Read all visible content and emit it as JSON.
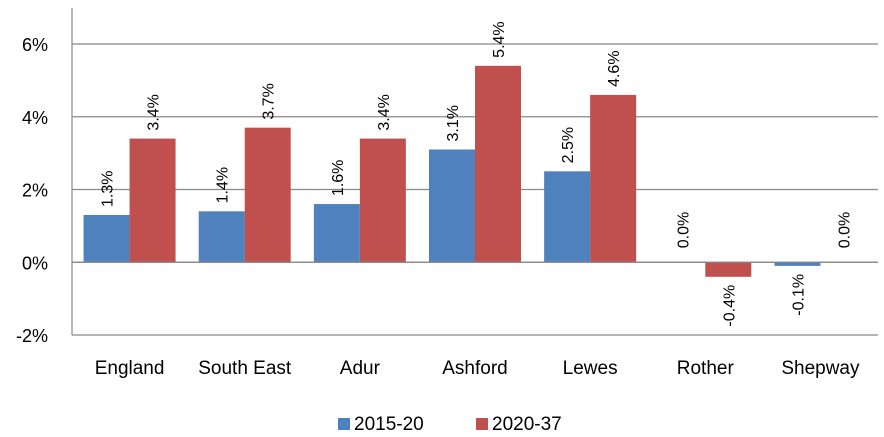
{
  "chart_data": {
    "type": "bar",
    "categories": [
      "England",
      "South East",
      "Adur",
      "Ashford",
      "Lewes",
      "Rother",
      "Shepway"
    ],
    "series": [
      {
        "name": "2015-20",
        "values": [
          1.3,
          1.4,
          1.6,
          3.1,
          2.5,
          0.0,
          -0.1
        ],
        "labels": [
          "1.3%",
          "1.4%",
          "1.6%",
          "3.1%",
          "2.5%",
          "0.0%",
          "-0.1%"
        ],
        "color": "#4f81bd"
      },
      {
        "name": "2020-37",
        "values": [
          3.4,
          3.7,
          3.4,
          5.4,
          4.6,
          -0.4,
          0.0
        ],
        "labels": [
          "3.4%",
          "3.7%",
          "3.4%",
          "5.4%",
          "4.6%",
          "-0.4%",
          "0.0%"
        ],
        "color": "#c0504d"
      }
    ],
    "ylim": [
      -2,
      6
    ],
    "yticks": [
      -2,
      0,
      2,
      4,
      6
    ],
    "ytick_labels": [
      "-2%",
      "0%",
      "2%",
      "4%",
      "6%"
    ],
    "gridlines": true,
    "legend": "bottom",
    "title": "",
    "xlabel": "",
    "ylabel": ""
  }
}
